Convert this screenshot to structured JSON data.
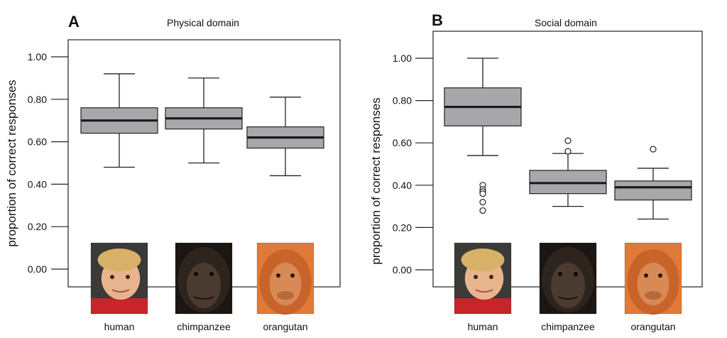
{
  "chart_data": [
    {
      "type": "boxplot",
      "panel_letter": "A",
      "title": "Physical domain",
      "ylabel": "proportion of correct responses",
      "ylim": [
        -0.08,
        1.08
      ],
      "yticks": [
        "1.00",
        "0.80",
        "0.60",
        "0.40",
        "0.20",
        "0.00"
      ],
      "categories": [
        "human",
        "chimpanzee",
        "orangutan"
      ],
      "boxes": [
        {
          "category": "human",
          "whisker_low": 0.48,
          "q1": 0.64,
          "median": 0.7,
          "q3": 0.76,
          "whisker_high": 0.92,
          "outliers": []
        },
        {
          "category": "chimpanzee",
          "whisker_low": 0.5,
          "q1": 0.66,
          "median": 0.71,
          "q3": 0.76,
          "whisker_high": 0.9,
          "outliers": []
        },
        {
          "category": "orangutan",
          "whisker_low": 0.44,
          "q1": 0.57,
          "median": 0.62,
          "q3": 0.67,
          "whisker_high": 0.81,
          "outliers": []
        }
      ],
      "colors": {
        "box": "#a8a8aa",
        "median": "#1a1a1a"
      }
    },
    {
      "type": "boxplot",
      "panel_letter": "B",
      "title": "Social domain",
      "ylabel": "proportion of correct responses",
      "ylim": [
        -0.08,
        1.08
      ],
      "yticks": [
        "1.00",
        "0.80",
        "0.60",
        "0.40",
        "0.20",
        "0.00"
      ],
      "categories": [
        "human",
        "chimpanzee",
        "orangutan"
      ],
      "boxes": [
        {
          "category": "human",
          "whisker_low": 0.54,
          "q1": 0.68,
          "median": 0.77,
          "q3": 0.86,
          "whisker_high": 1.0,
          "outliers": [
            0.4,
            0.38,
            0.37,
            0.36,
            0.32,
            0.28
          ]
        },
        {
          "category": "chimpanzee",
          "whisker_low": 0.3,
          "q1": 0.36,
          "median": 0.41,
          "q3": 0.47,
          "whisker_high": 0.55,
          "outliers": [
            0.56,
            0.61
          ]
        },
        {
          "category": "orangutan",
          "whisker_low": 0.24,
          "q1": 0.33,
          "median": 0.39,
          "q3": 0.42,
          "whisker_high": 0.48,
          "outliers": [
            0.57
          ]
        }
      ],
      "colors": {
        "box": "#a8a8aa",
        "median": "#1a1a1a"
      }
    }
  ],
  "photos": {
    "human": {
      "skin": "#e8b48e",
      "hair": "#d8b068",
      "shirt": "#c8242a",
      "bg": "#3a3a36"
    },
    "chimpanzee": {
      "fur": "#2e241e",
      "face": "#4a3a30",
      "bg": "#1c1612"
    },
    "orangutan": {
      "fur": "#c8642a",
      "face": "#d88a56",
      "bg": "#e07a36"
    }
  }
}
